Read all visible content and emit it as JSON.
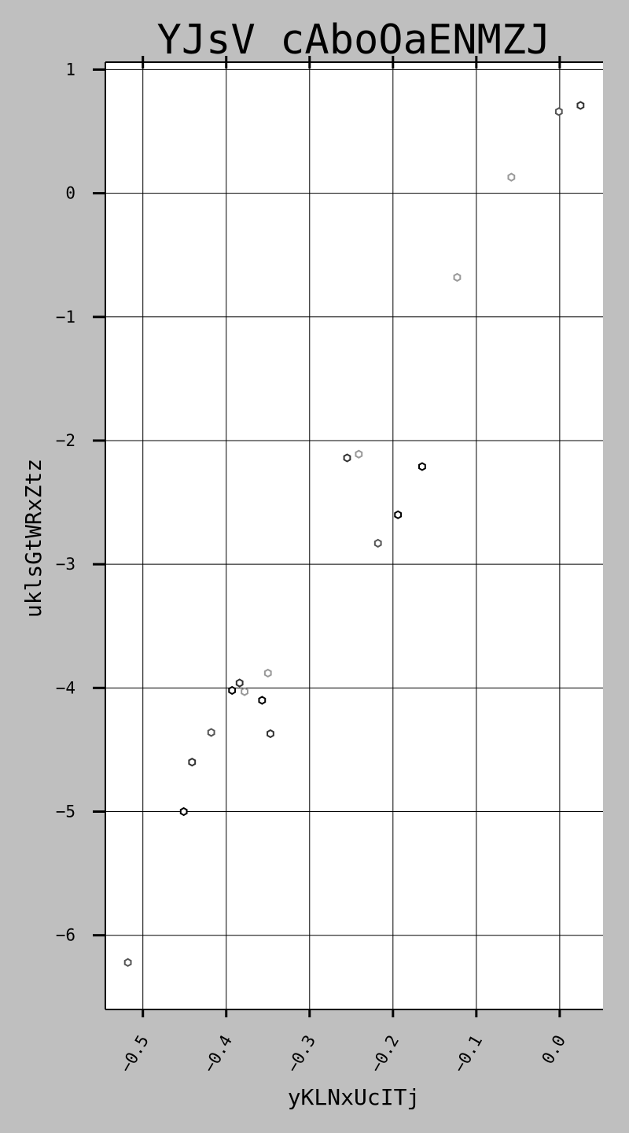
{
  "chart_data": {
    "type": "scatter",
    "title": "YJsV cAboOaENMZJ",
    "xlabel": "yKLNxUcITj",
    "ylabel": "uklsGtWRxZtz",
    "xlim": [
      -0.545,
      0.052
    ],
    "ylim": [
      -6.6,
      1.06
    ],
    "grid": true,
    "xticks": [
      -0.5,
      -0.4,
      -0.3,
      -0.2,
      -0.1,
      0.0
    ],
    "xtick_labels": [
      "−0.5",
      "−0.4",
      "−0.3",
      "−0.2",
      "−0.1",
      "0.0"
    ],
    "yticks": [
      1,
      0,
      -1,
      -2,
      -3,
      -4,
      -5,
      -6
    ],
    "ytick_labels": [
      "1",
      "0",
      "−1",
      "−2",
      "−3",
      "−4",
      "−5",
      "−6"
    ],
    "points": [
      {
        "x": 0.025,
        "y": 0.71,
        "color": "#333333"
      },
      {
        "x": -0.001,
        "y": 0.66,
        "color": "#555555"
      },
      {
        "x": -0.058,
        "y": 0.13,
        "color": "#999999"
      },
      {
        "x": -0.123,
        "y": -0.68,
        "color": "#999999"
      },
      {
        "x": -0.255,
        "y": -2.14,
        "color": "#333333"
      },
      {
        "x": -0.241,
        "y": -2.11,
        "color": "#999999"
      },
      {
        "x": -0.165,
        "y": -2.21,
        "color": "#000000"
      },
      {
        "x": -0.194,
        "y": -2.6,
        "color": "#000000"
      },
      {
        "x": -0.218,
        "y": -2.83,
        "color": "#555555"
      },
      {
        "x": -0.35,
        "y": -3.88,
        "color": "#999999"
      },
      {
        "x": -0.384,
        "y": -3.96,
        "color": "#333333"
      },
      {
        "x": -0.393,
        "y": -4.02,
        "color": "#000000"
      },
      {
        "x": -0.378,
        "y": -4.03,
        "color": "#999999"
      },
      {
        "x": -0.357,
        "y": -4.1,
        "color": "#000000"
      },
      {
        "x": -0.418,
        "y": -4.36,
        "color": "#555555"
      },
      {
        "x": -0.347,
        "y": -4.37,
        "color": "#333333"
      },
      {
        "x": -0.441,
        "y": -4.6,
        "color": "#333333"
      },
      {
        "x": -0.451,
        "y": -5.0,
        "color": "#000000"
      },
      {
        "x": -0.518,
        "y": -6.22,
        "color": "#555555"
      }
    ]
  }
}
